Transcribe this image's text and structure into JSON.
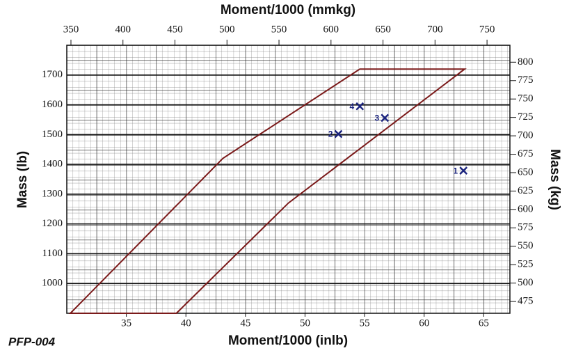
{
  "chart_data": {
    "type": "scatter",
    "x2label": "Moment/1000 (mmkg)",
    "xlabel": "Moment/1000 (inlb)",
    "ylabel": "Mass (lb)",
    "y2label": "Mass (kg)",
    "note": "PFP-004",
    "xlim": [
      30,
      67.2
    ],
    "xticks": [
      35,
      40,
      45,
      50,
      55,
      60,
      65
    ],
    "x2lim": [
      346,
      772
    ],
    "x2ticks": [
      350,
      400,
      450,
      500,
      550,
      600,
      650,
      700,
      750
    ],
    "ylim": [
      900,
      1800
    ],
    "yticks": [
      1000,
      1100,
      1200,
      1300,
      1400,
      1500,
      1600,
      1700
    ],
    "y2lim": [
      459,
      823
    ],
    "y2ticks": [
      475,
      500,
      525,
      550,
      575,
      600,
      625,
      650,
      675,
      700,
      725,
      750,
      775,
      800
    ],
    "grid": true,
    "envelope": {
      "color": "#7b1a1a",
      "x": [
        30.3,
        43.1,
        54.6,
        63.4,
        48.6,
        39.2
      ],
      "y": [
        900,
        1420,
        1720,
        1720,
        1270,
        900
      ]
    },
    "points": {
      "color": "#1a237e",
      "labels": [
        "1",
        "2",
        "3",
        "4"
      ],
      "x": [
        63.3,
        52.8,
        56.7,
        54.6
      ],
      "y": [
        1379,
        1502,
        1556,
        1595
      ]
    }
  }
}
